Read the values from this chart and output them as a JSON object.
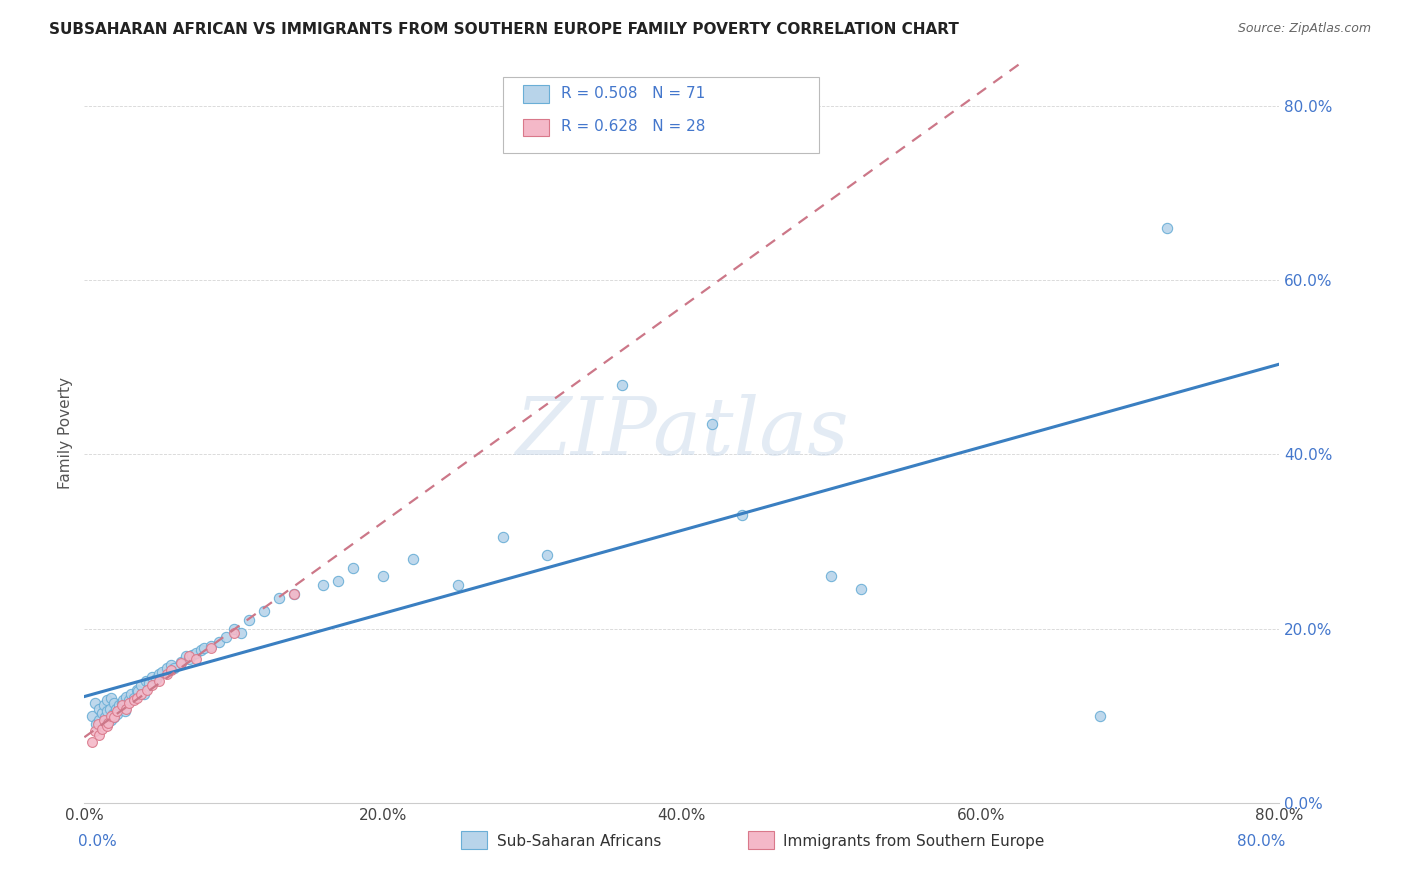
{
  "title": "SUBSAHARAN AFRICAN VS IMMIGRANTS FROM SOUTHERN EUROPE FAMILY POVERTY CORRELATION CHART",
  "source": "Source: ZipAtlas.com",
  "ylabel": "Family Poverty",
  "xlim": [
    0.0,
    0.8
  ],
  "ylim": [
    0.0,
    0.85
  ],
  "ytick_values": [
    0.0,
    0.2,
    0.4,
    0.6,
    0.8
  ],
  "xtick_values": [
    0.0,
    0.2,
    0.4,
    0.6,
    0.8
  ],
  "legend1_R": "0.508",
  "legend1_N": "71",
  "legend2_R": "0.628",
  "legend2_N": "28",
  "scatter1_color": "#b8d4ea",
  "scatter1_edgecolor": "#6aaed6",
  "scatter2_color": "#f4b8c8",
  "scatter2_edgecolor": "#d9788a",
  "line1_color": "#3a7fc1",
  "line2_color": "#cc7788",
  "watermark_text": "ZIPatlas",
  "blue_x": [
    0.005,
    0.007,
    0.008,
    0.01,
    0.01,
    0.012,
    0.013,
    0.014,
    0.015,
    0.015,
    0.016,
    0.017,
    0.018,
    0.018,
    0.019,
    0.02,
    0.02,
    0.021,
    0.022,
    0.023,
    0.025,
    0.026,
    0.027,
    0.028,
    0.03,
    0.031,
    0.033,
    0.035,
    0.036,
    0.038,
    0.04,
    0.041,
    0.043,
    0.045,
    0.048,
    0.05,
    0.052,
    0.055,
    0.058,
    0.06,
    0.065,
    0.068,
    0.07,
    0.072,
    0.075,
    0.078,
    0.08,
    0.085,
    0.09,
    0.095,
    0.1,
    0.105,
    0.11,
    0.12,
    0.13,
    0.14,
    0.16,
    0.17,
    0.18,
    0.2,
    0.22,
    0.25,
    0.28,
    0.31,
    0.36,
    0.42,
    0.44,
    0.5,
    0.52,
    0.68,
    0.725
  ],
  "blue_y": [
    0.1,
    0.115,
    0.09,
    0.095,
    0.108,
    0.103,
    0.112,
    0.098,
    0.105,
    0.118,
    0.093,
    0.108,
    0.12,
    0.095,
    0.102,
    0.098,
    0.115,
    0.108,
    0.102,
    0.112,
    0.115,
    0.118,
    0.105,
    0.122,
    0.118,
    0.125,
    0.12,
    0.13,
    0.128,
    0.135,
    0.125,
    0.14,
    0.138,
    0.145,
    0.142,
    0.148,
    0.15,
    0.155,
    0.158,
    0.155,
    0.162,
    0.168,
    0.165,
    0.17,
    0.172,
    0.175,
    0.178,
    0.18,
    0.185,
    0.19,
    0.2,
    0.195,
    0.21,
    0.22,
    0.235,
    0.24,
    0.25,
    0.255,
    0.27,
    0.26,
    0.28,
    0.25,
    0.305,
    0.285,
    0.48,
    0.435,
    0.33,
    0.26,
    0.245,
    0.1,
    0.66
  ],
  "pink_x": [
    0.005,
    0.007,
    0.009,
    0.01,
    0.012,
    0.013,
    0.015,
    0.016,
    0.018,
    0.02,
    0.022,
    0.025,
    0.028,
    0.03,
    0.033,
    0.035,
    0.038,
    0.042,
    0.045,
    0.05,
    0.055,
    0.058,
    0.065,
    0.07,
    0.075,
    0.085,
    0.1,
    0.14
  ],
  "pink_y": [
    0.07,
    0.082,
    0.09,
    0.078,
    0.085,
    0.095,
    0.088,
    0.092,
    0.1,
    0.098,
    0.105,
    0.112,
    0.108,
    0.115,
    0.118,
    0.12,
    0.125,
    0.13,
    0.135,
    0.14,
    0.148,
    0.152,
    0.16,
    0.168,
    0.165,
    0.178,
    0.195,
    0.24
  ]
}
